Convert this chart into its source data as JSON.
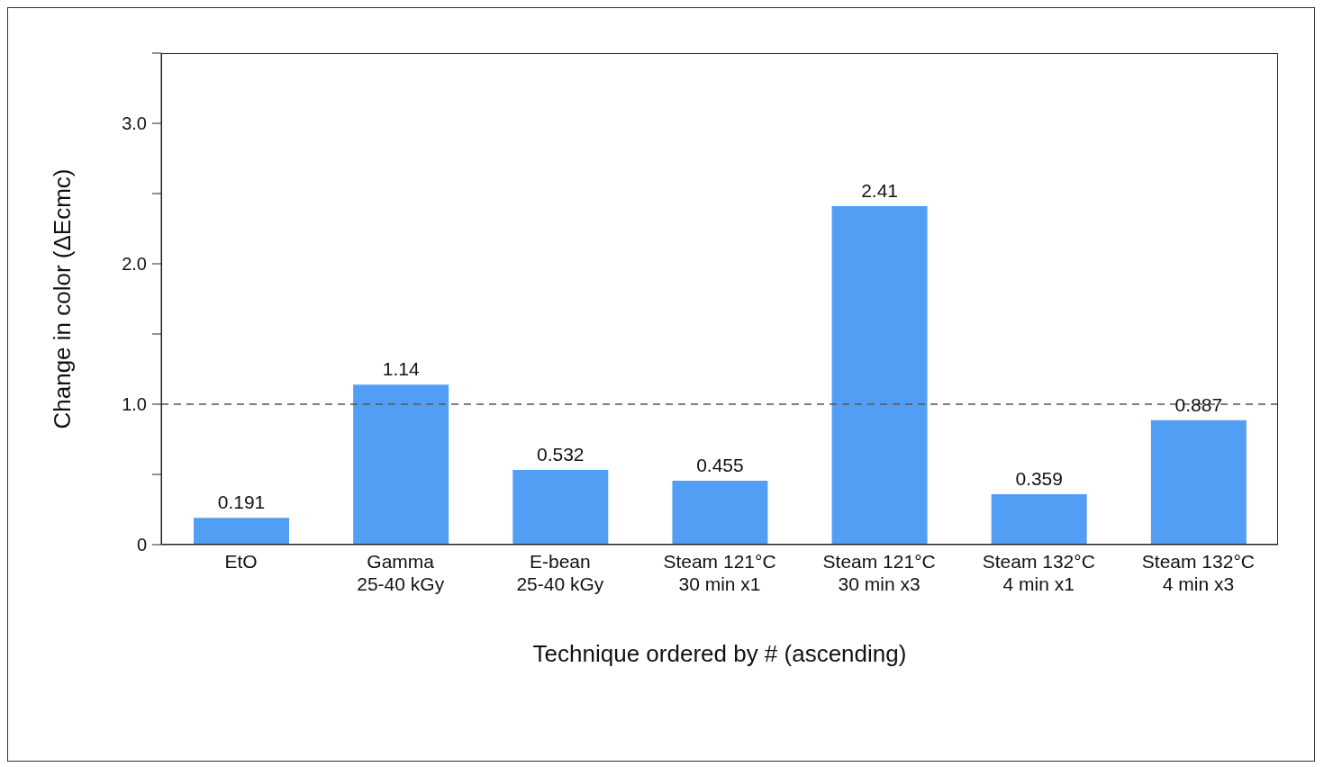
{
  "chart_data": {
    "type": "bar",
    "xlabel": "Technique ordered by # (ascending)",
    "ylabel": "Change in color (ΔEcmc)",
    "categories": [
      "EtO",
      "Gamma\n25-40 kGy",
      "E-bean\n25-40 kGy",
      "Steam 121°C\n30 min x1",
      "Steam 121°C\n30 min x3",
      "Steam 132°C\n4 min x1",
      "Steam 132°C\n4 min x3"
    ],
    "values": [
      0.191,
      1.14,
      0.532,
      0.455,
      2.41,
      0.359,
      0.887
    ],
    "color": "#539ef5",
    "ylim": [
      0,
      3.5
    ],
    "yticks": [
      0,
      {
        "value": 0.5,
        "label": null
      },
      {
        "value": 1,
        "label": "1.0"
      },
      {
        "value": 1.5,
        "label": null
      },
      {
        "value": 2,
        "label": "2.0"
      },
      {
        "value": 2.5,
        "label": null
      },
      {
        "value": 3,
        "label": "3.0"
      },
      {
        "value": 3.5,
        "label": null
      }
    ],
    "ref_lines": [
      {
        "axis": "y",
        "value": 1,
        "label": null,
        "color": "#555555",
        "line_style": "dashed"
      }
    ],
    "data_labels": true,
    "grid": false
  }
}
